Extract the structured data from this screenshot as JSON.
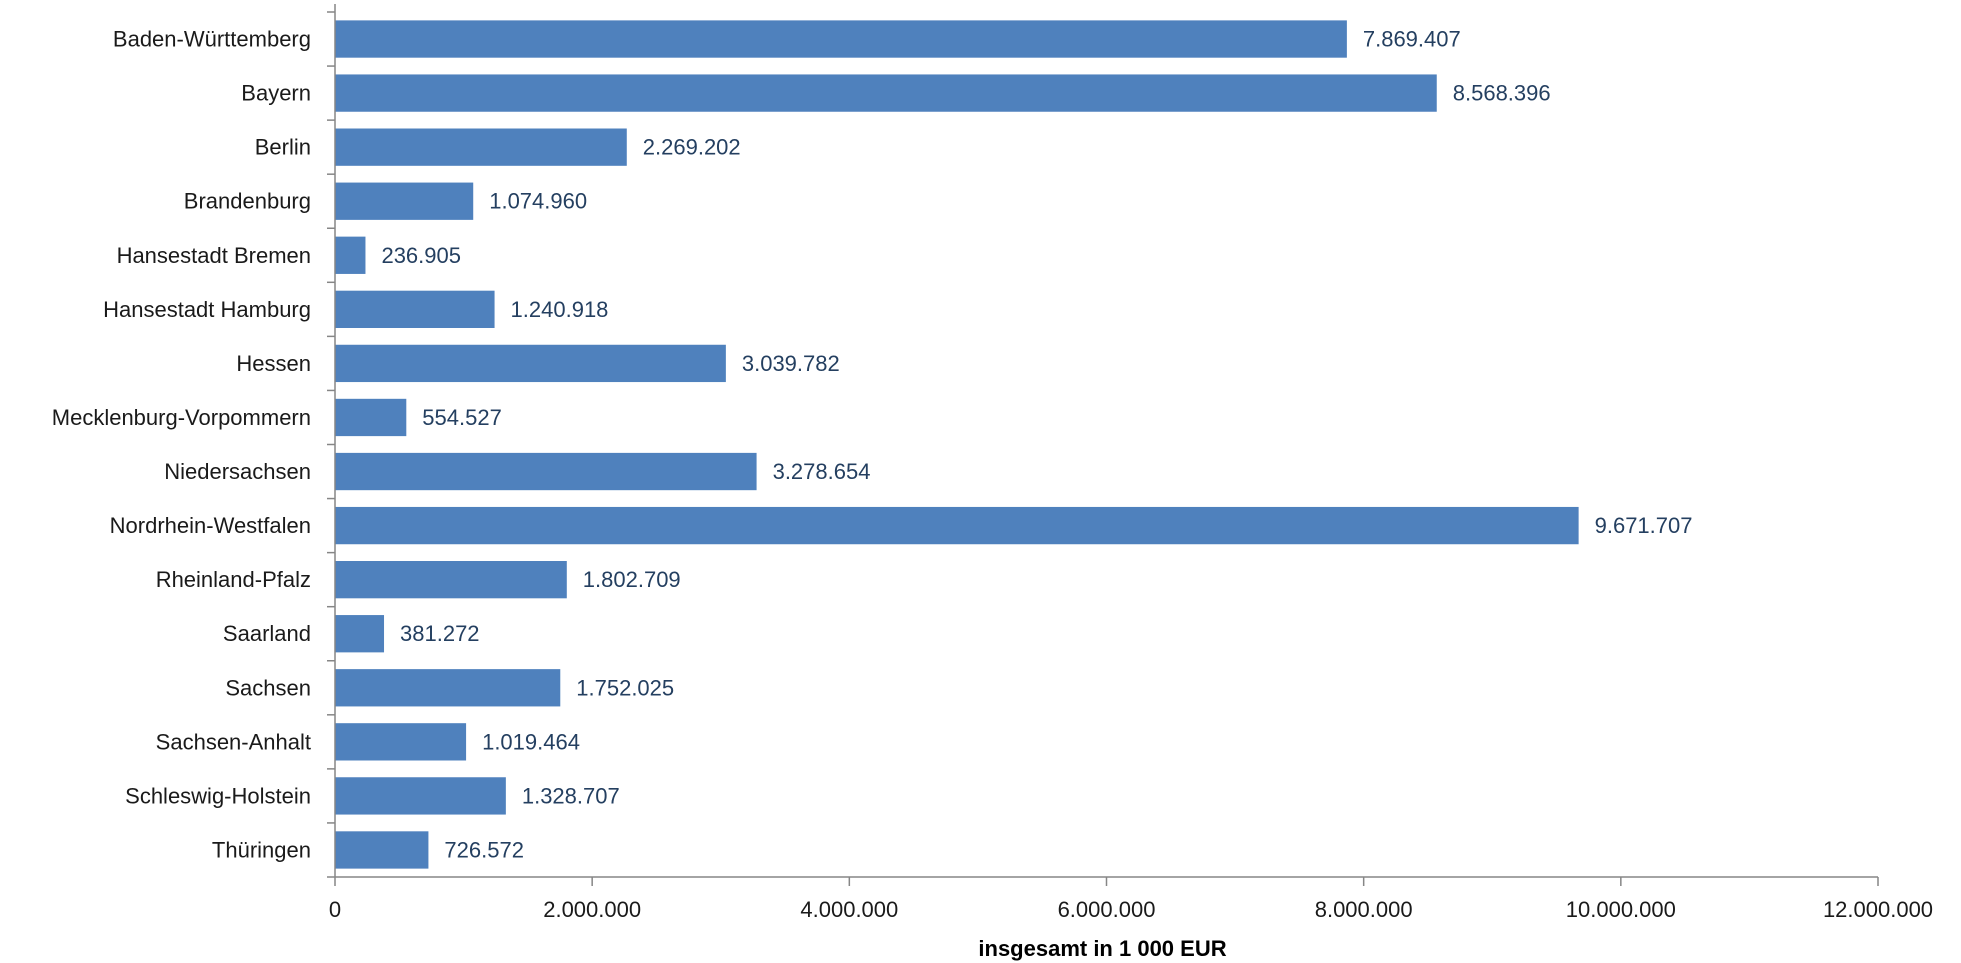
{
  "chart_data": {
    "type": "bar",
    "orientation": "horizontal",
    "categories": [
      "Baden-Württemberg",
      "Bayern",
      "Berlin",
      "Brandenburg",
      "Hansestadt Bremen",
      "Hansestadt Hamburg",
      "Hessen",
      "Mecklenburg-Vorpommern",
      "Niedersachsen",
      "Nordrhein-Westfalen",
      "Rheinland-Pfalz",
      "Saarland",
      "Sachsen",
      "Sachsen-Anhalt",
      "Schleswig-Holstein",
      "Thüringen"
    ],
    "values": [
      7869407,
      8568396,
      2269202,
      1074960,
      236905,
      1240918,
      3039782,
      554527,
      3278654,
      9671707,
      1802709,
      381272,
      1752025,
      1019464,
      1328707,
      726572
    ],
    "value_labels": [
      "7.869.407",
      "8.568.396",
      "2.269.202",
      "1.074.960",
      "236.905",
      "1.240.918",
      "3.039.782",
      "554.527",
      "3.278.654",
      "9.671.707",
      "1.802.709",
      "381.272",
      "1.752.025",
      "1.019.464",
      "1.328.707",
      "726.572"
    ],
    "xlim": [
      0,
      12000000
    ],
    "x_ticks": [
      0,
      2000000,
      4000000,
      6000000,
      8000000,
      10000000,
      12000000
    ],
    "x_tick_labels": [
      "0",
      "2.000.000",
      "4.000.000",
      "6.000.000",
      "8.000.000",
      "10.000.000",
      "12.000.000"
    ],
    "xlabel": "insgesamt in 1 000 EUR",
    "ylabel": "",
    "title": "",
    "grid": false,
    "legend": "none",
    "bar_color": "#4f81bd",
    "value_label_color": "#243f60"
  }
}
